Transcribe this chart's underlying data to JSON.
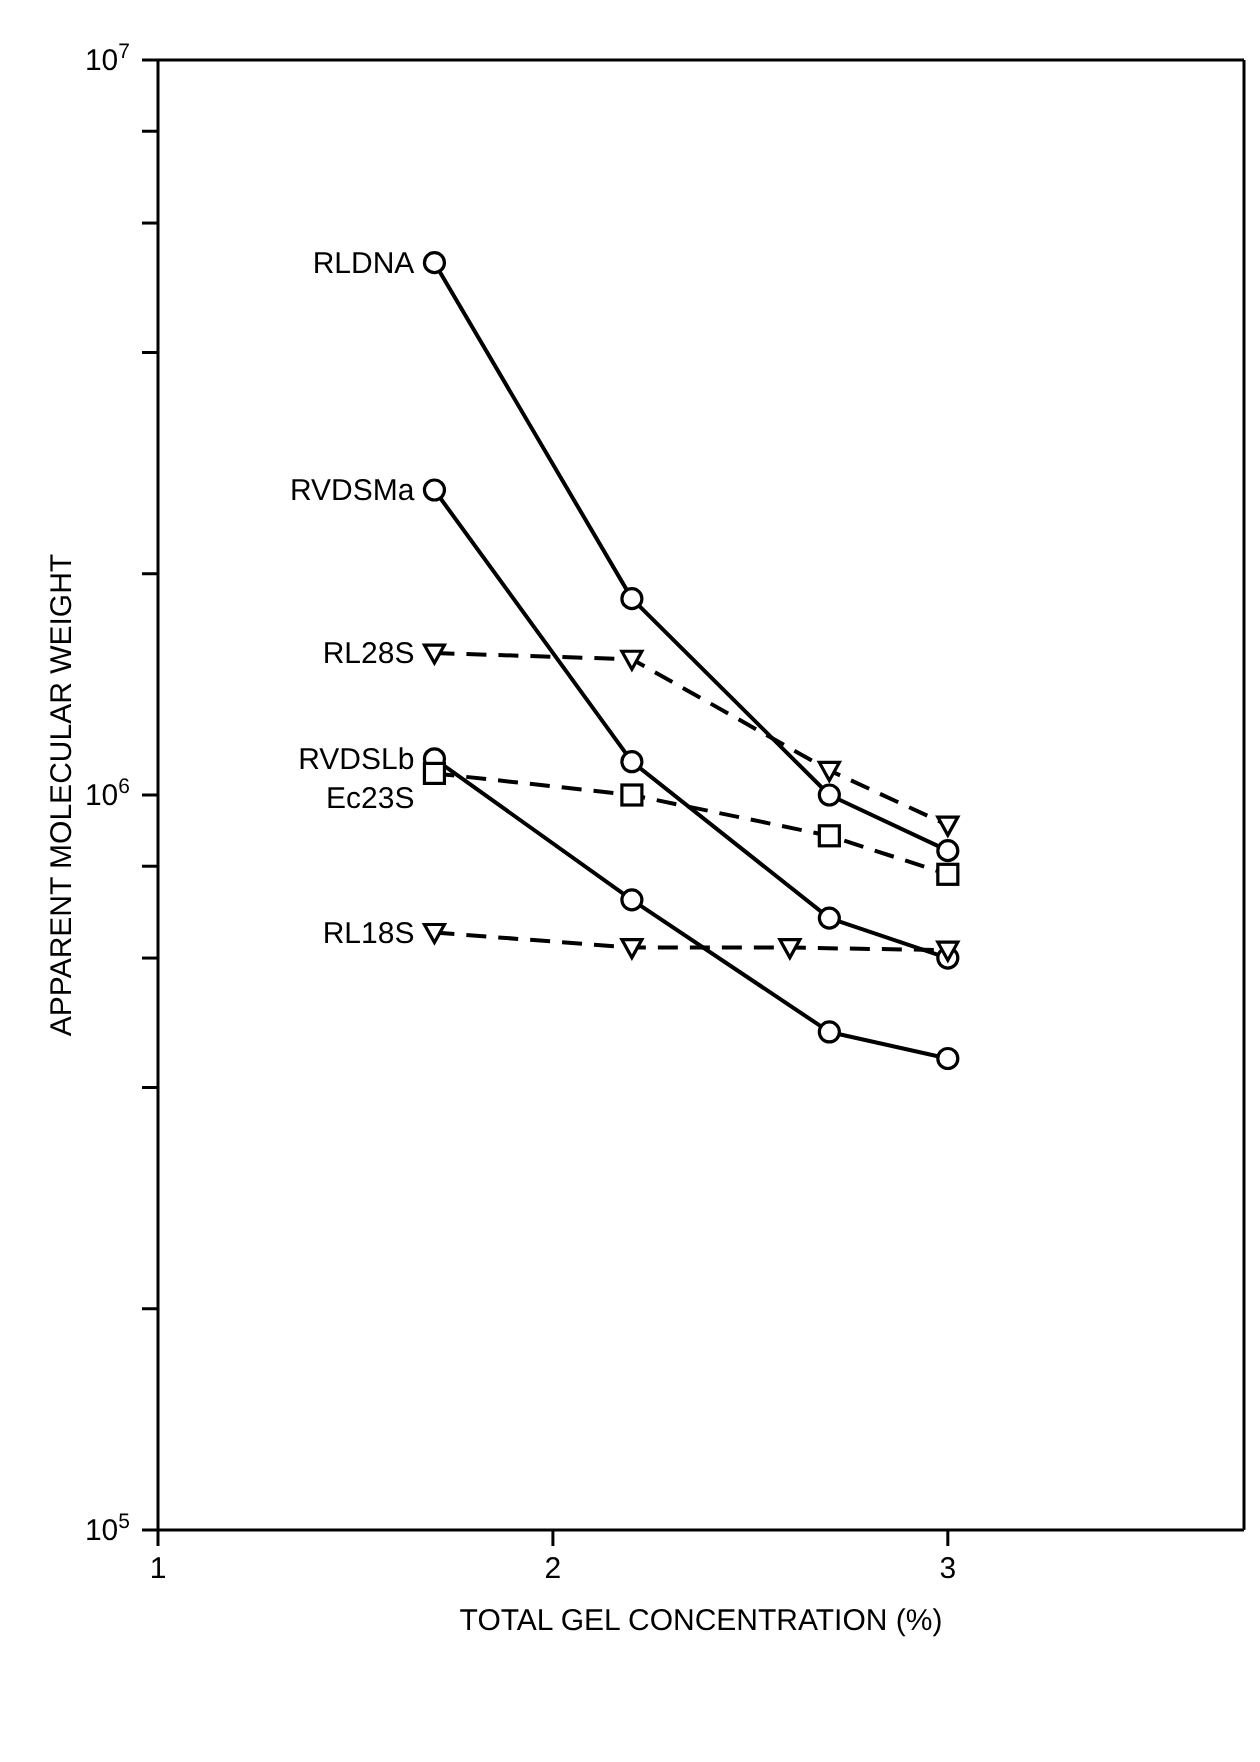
{
  "chart_data": {
    "type": "line",
    "xlabel": "TOTAL GEL CONCENTRATION (%)",
    "ylabel": "APPARENT MOLECULAR WEIGHT",
    "log": "y",
    "xlim": [
      1,
      3.75
    ],
    "xticks": [
      1,
      2,
      3
    ],
    "ylim": [
      100000,
      10000000
    ],
    "yticks": [
      {
        "value": 100000,
        "label": "10$^{5}$"
      },
      {
        "value": 200000,
        "label": null
      },
      {
        "value": 400000,
        "label": null
      },
      {
        "value": 600000,
        "label": null
      },
      {
        "value": 800000,
        "label": null
      },
      {
        "value": 1000000,
        "label": "10$^{6}$"
      },
      {
        "value": 2000000,
        "label": null
      },
      {
        "value": 4000000,
        "label": null
      },
      {
        "value": 6000000,
        "label": null
      },
      {
        "value": 8000000,
        "label": null
      },
      {
        "value": 10000000,
        "label": "10$^{7}$"
      }
    ],
    "series": [
      {
        "name": "RLDNA",
        "color": "#000000",
        "marker": "circle",
        "line_style": "solid",
        "x": [
          1.7,
          2.2,
          2.7,
          3.0
        ],
        "values": [
          5300000,
          1850000,
          1000000,
          840000
        ]
      },
      {
        "name": "RVDSMa",
        "color": "#000000",
        "marker": "circle",
        "line_style": "solid",
        "x": [
          1.7,
          2.2,
          2.7,
          3.0
        ],
        "values": [
          2600000,
          1110000,
          680000,
          600000
        ]
      },
      {
        "name": "RL28S",
        "color": "#000000",
        "marker": "triangle",
        "line_style": "dashed",
        "x": [
          1.7,
          2.2,
          2.7,
          3.0
        ],
        "values": [
          1560000,
          1530000,
          1080000,
          910000
        ]
      },
      {
        "name": "RVDSLb",
        "color": "#000000",
        "marker": "circle",
        "line_style": "solid",
        "x": [
          1.7,
          2.2,
          2.7,
          3.0
        ],
        "values": [
          1120000,
          720000,
          476000,
          438000
        ]
      },
      {
        "name": "Ec23S",
        "color": "#000000",
        "marker": "square",
        "line_style": "dashed",
        "x": [
          1.7,
          2.2,
          2.7,
          3.0
        ],
        "values": [
          1070000,
          1000000,
          880000,
          780000
        ]
      },
      {
        "name": "RL18S",
        "color": "#000000",
        "marker": "triangle",
        "line_style": "dashed",
        "x": [
          1.7,
          2.2,
          2.6,
          3.0
        ],
        "values": [
          650000,
          620000,
          620000,
          615000
        ]
      }
    ]
  }
}
